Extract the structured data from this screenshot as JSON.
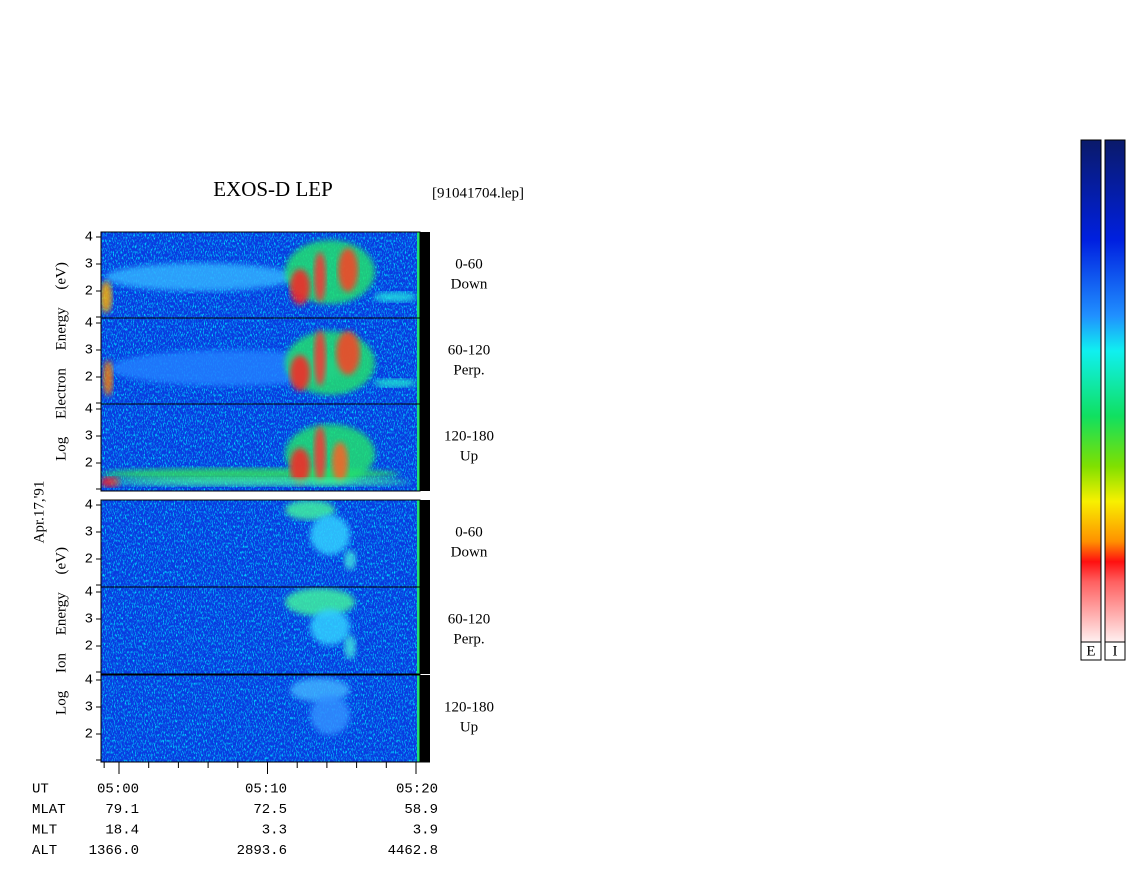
{
  "title": "EXOS-D LEP",
  "file": "[91041704.lep]",
  "date": "Apr.17,'91",
  "groups": [
    {
      "ylabel": "Log Electron Energy (eV)",
      "panels": [
        {
          "range": "0-60",
          "direction": "Down"
        },
        {
          "range": "60-120",
          "direction": "Perp."
        },
        {
          "range": "120-180",
          "direction": "Up"
        }
      ],
      "yticks": [
        2,
        3,
        4
      ]
    },
    {
      "ylabel": "Log Ion Energy (eV)",
      "panels": [
        {
          "range": "0-60",
          "direction": "Down"
        },
        {
          "range": "60-120",
          "direction": "Perp."
        },
        {
          "range": "120-180",
          "direction": "Up"
        }
      ],
      "yticks": [
        2,
        3,
        4
      ]
    }
  ],
  "ephemeris": [
    {
      "name": "UT",
      "values": [
        "05:00",
        "05:10",
        "05:20"
      ]
    },
    {
      "name": "MLAT",
      "values": [
        "79.1",
        "72.5",
        "58.9"
      ]
    },
    {
      "name": "MLT",
      "values": [
        "18.4",
        "3.3",
        "3.9"
      ]
    },
    {
      "name": "ALT",
      "values": [
        "1366.0",
        "2893.6",
        "4462.8"
      ]
    }
  ],
  "colorbars": [
    "E",
    "I"
  ]
}
